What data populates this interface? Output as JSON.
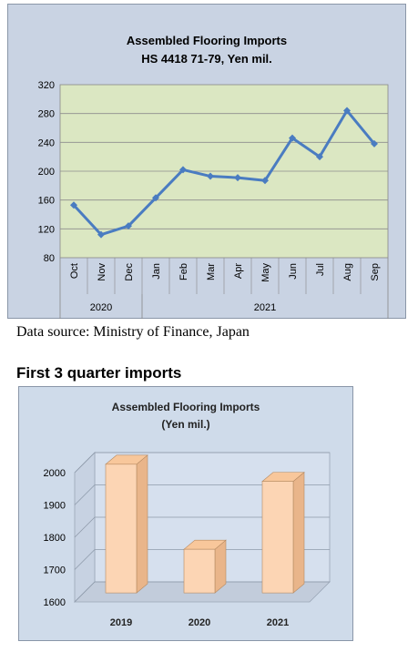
{
  "source_note": "Data source: Ministry of Finance, Japan",
  "section_heading": "First 3 quarter imports",
  "colors": {
    "frame_bg": "#c9d3e3",
    "plot_bg": "#dbe7c2",
    "line": "#4a7cc1",
    "bar_front": "#fcd5b4",
    "bar_top": "#f8c79b",
    "bar_side": "#e9b58a",
    "frame2_bg": "#cfdbea"
  },
  "chart_data": [
    {
      "type": "line",
      "title": "Assembled Flooring Imports",
      "subtitle": "HS 4418 71-79, Yen mil.",
      "x": [
        "Oct",
        "Nov",
        "Dec",
        "Jan",
        "Feb",
        "Mar",
        "Apr",
        "May",
        "Jun",
        "Jul",
        "Aug",
        "Sep"
      ],
      "year_groups": [
        {
          "label": "2020",
          "count": 3
        },
        {
          "label": "2021",
          "count": 9
        }
      ],
      "series": [
        {
          "values": [
            153,
            112,
            124,
            163,
            202,
            193,
            191,
            187,
            246,
            220,
            284,
            238
          ]
        }
      ],
      "ylim": [
        80,
        320
      ],
      "yticks": [
        80,
        120,
        160,
        200,
        240,
        280,
        320
      ],
      "grid": true
    },
    {
      "type": "bar",
      "title": "Assembled Flooring Imports",
      "subtitle": "(Yen mil.)",
      "categories": [
        "2019",
        "2020",
        "2021"
      ],
      "values": [
        1998,
        1735,
        1945
      ],
      "ylim": [
        1600,
        2000
      ],
      "yticks": [
        1600,
        1700,
        1800,
        1900,
        2000
      ],
      "grid": true
    }
  ]
}
